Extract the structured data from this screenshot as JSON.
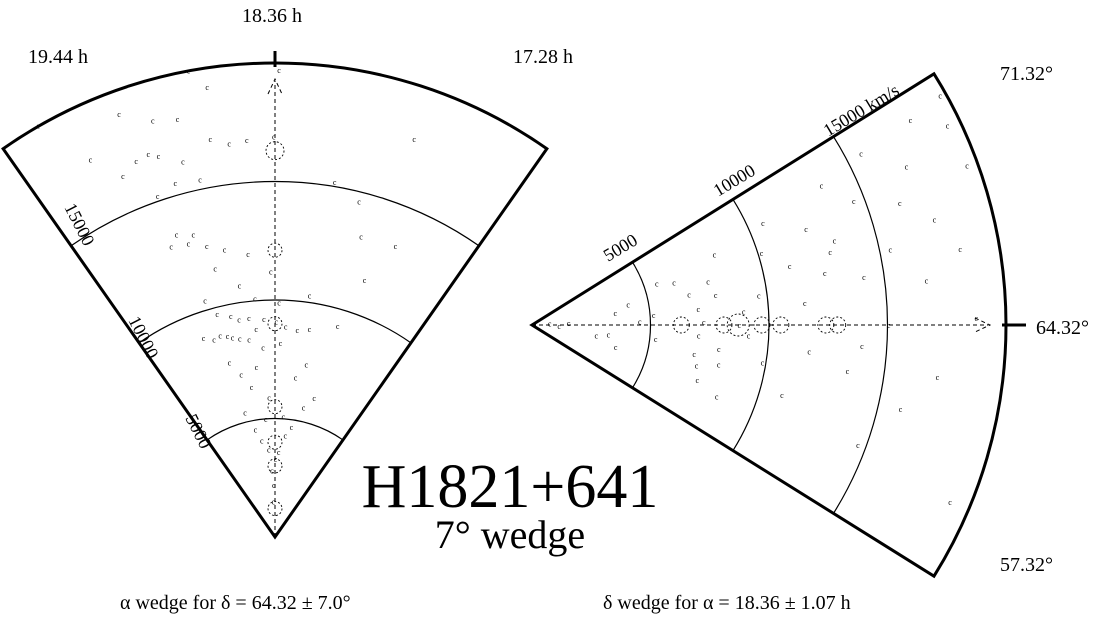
{
  "title": {
    "main": "H1821+641",
    "sub": "7° wedge"
  },
  "chart_data": [
    {
      "type": "scatter",
      "name": "alpha-wedge",
      "caption": "α wedge for δ =  64.32 ± 7.0°",
      "angle_labels": [
        "19.44 h",
        "18.36 h",
        "17.28 h"
      ],
      "angle_range_h": [
        17.28,
        19.44
      ],
      "radial_tick_labels": [
        "5000",
        "10000",
        "15000"
      ],
      "radial_range_kms": [
        0,
        20000
      ],
      "grid": true,
      "points": [
        {
          "a": 0.02,
          "v": 1500
        },
        {
          "a": 0.0,
          "v": 2200
        },
        {
          "a": 0.05,
          "v": 2800
        },
        {
          "a": -0.04,
          "v": 3300
        },
        {
          "a": 0.1,
          "v": 3700
        },
        {
          "a": -0.1,
          "v": 3600
        },
        {
          "a": 0.22,
          "v": 4100
        },
        {
          "a": -0.2,
          "v": 4300
        },
        {
          "a": 0.3,
          "v": 4600
        },
        {
          "a": -0.28,
          "v": 4700
        },
        {
          "a": 0.12,
          "v": 5000
        },
        {
          "a": -0.14,
          "v": 5100
        },
        {
          "a": 0.4,
          "v": 5400
        },
        {
          "a": -0.4,
          "v": 5600
        },
        {
          "a": 0.06,
          "v": 5900
        },
        {
          "a": -0.5,
          "v": 6100
        },
        {
          "a": 0.26,
          "v": 6400
        },
        {
          "a": -0.24,
          "v": 6800
        },
        {
          "a": 0.35,
          "v": 7000
        },
        {
          "a": 0.18,
          "v": 7200
        },
        {
          "a": -0.33,
          "v": 7400
        },
        {
          "a": 0.44,
          "v": 7600
        },
        {
          "a": 0.1,
          "v": 8000
        },
        {
          "a": -0.06,
          "v": 8200
        },
        {
          "a": 0.22,
          "v": 8400
        },
        {
          "a": 0.3,
          "v": 8500
        },
        {
          "a": 0.36,
          "v": 8600
        },
        {
          "a": 0.4,
          "v": 8700
        },
        {
          "a": 0.46,
          "v": 8800
        },
        {
          "a": 0.52,
          "v": 8700
        },
        {
          "a": 0.15,
          "v": 8800
        },
        {
          "a": -0.1,
          "v": 8900
        },
        {
          "a": -0.2,
          "v": 8800
        },
        {
          "a": -0.3,
          "v": 8900
        },
        {
          "a": 0.6,
          "v": 8900
        },
        {
          "a": -0.02,
          "v": 9100
        },
        {
          "a": 0.08,
          "v": 9200
        },
        {
          "a": 0.2,
          "v": 9300
        },
        {
          "a": 0.28,
          "v": 9300
        },
        {
          "a": -0.52,
          "v": 9300
        },
        {
          "a": 0.34,
          "v": 9500
        },
        {
          "a": 0.44,
          "v": 9700
        },
        {
          "a": -0.04,
          "v": 9900
        },
        {
          "a": 0.14,
          "v": 10100
        },
        {
          "a": -0.26,
          "v": 10300
        },
        {
          "a": 0.5,
          "v": 10400
        },
        {
          "a": 0.24,
          "v": 10700
        },
        {
          "a": 0.02,
          "v": 11200
        },
        {
          "a": -0.6,
          "v": 11500
        },
        {
          "a": 0.38,
          "v": 11600
        },
        {
          "a": 0.16,
          "v": 12000
        },
        {
          "a": 0.3,
          "v": 12300
        },
        {
          "a": 0.4,
          "v": 12600
        },
        {
          "a": 0.5,
          "v": 12900
        },
        {
          "a": 0.46,
          "v": 13200
        },
        {
          "a": 0.55,
          "v": 13400
        },
        {
          "a": 0.6,
          "v": 13000
        },
        {
          "a": -0.7,
          "v": 13300
        },
        {
          "a": -0.5,
          "v": 13200
        },
        {
          "a": -0.44,
          "v": 14600
        },
        {
          "a": -0.3,
          "v": 15200
        },
        {
          "a": 0.36,
          "v": 15400
        },
        {
          "a": 0.48,
          "v": 15500
        },
        {
          "a": 0.58,
          "v": 15200
        },
        {
          "a": 0.42,
          "v": 16300
        },
        {
          "a": 0.52,
          "v": 16800
        },
        {
          "a": 0.62,
          "v": 16900
        },
        {
          "a": 0.56,
          "v": 17000
        },
        {
          "a": 0.7,
          "v": 16500
        },
        {
          "a": 0.0,
          "v": 16900
        },
        {
          "a": 0.12,
          "v": 16800
        },
        {
          "a": 0.2,
          "v": 16700
        },
        {
          "a": 0.28,
          "v": 17000
        },
        {
          "a": 0.4,
          "v": 18100
        },
        {
          "a": 0.5,
          "v": 18300
        },
        {
          "a": -0.6,
          "v": 17800
        },
        {
          "a": -0.02,
          "v": 19700
        },
        {
          "a": 0.32,
          "v": 20000
        },
        {
          "a": 0.62,
          "v": 19000
        },
        {
          "a": 0.8,
          "v": 17700
        },
        {
          "a": 0.92,
          "v": 20000
        },
        {
          "a": 0.26,
          "v": 19200
        }
      ]
    },
    {
      "type": "scatter",
      "name": "delta-wedge",
      "caption": "δ wedge for α =  18.36 ± 1.07 h",
      "angle_labels": [
        "71.32°",
        "64.32°",
        "57.32°"
      ],
      "angle_range_deg": [
        57.32,
        71.32
      ],
      "radial_tick_labels": [
        "5000",
        "10000",
        "15000 km/s"
      ],
      "radial_range_kms": [
        0,
        20000
      ],
      "grid": true,
      "points": [
        {
          "d": 1.0,
          "v": 800
        },
        {
          "d": -0.5,
          "v": 1200
        },
        {
          "d": 0.6,
          "v": 1600
        },
        {
          "d": -2.0,
          "v": 2800
        },
        {
          "d": -1.5,
          "v": 3300
        },
        {
          "d": 1.8,
          "v": 3600
        },
        {
          "d": 2.6,
          "v": 4200
        },
        {
          "d": -3.2,
          "v": 3700
        },
        {
          "d": 0.4,
          "v": 4600
        },
        {
          "d": 1.0,
          "v": 5200
        },
        {
          "d": -1.4,
          "v": 5300
        },
        {
          "d": 4.0,
          "v": 5600
        },
        {
          "d": 3.6,
          "v": 6300
        },
        {
          "d": 2.4,
          "v": 6800
        },
        {
          "d": 1.2,
          "v": 7100
        },
        {
          "d": 0.2,
          "v": 7300
        },
        {
          "d": -0.8,
          "v": 7100
        },
        {
          "d": -2.2,
          "v": 7000
        },
        {
          "d": -3.0,
          "v": 7200
        },
        {
          "d": -4.0,
          "v": 7400
        },
        {
          "d": 3.0,
          "v": 7700
        },
        {
          "d": 2.0,
          "v": 7900
        },
        {
          "d": -1.6,
          "v": 8000
        },
        {
          "d": -2.6,
          "v": 8100
        },
        {
          "d": 4.6,
          "v": 8300
        },
        {
          "d": -4.6,
          "v": 8400
        },
        {
          "d": 0.0,
          "v": 8800
        },
        {
          "d": 0.8,
          "v": 9000
        },
        {
          "d": -0.6,
          "v": 9200
        },
        {
          "d": 1.6,
          "v": 9700
        },
        {
          "d": -2.0,
          "v": 9900
        },
        {
          "d": 3.8,
          "v": 10200
        },
        {
          "d": 5.2,
          "v": 10700
        },
        {
          "d": 2.8,
          "v": 11200
        },
        {
          "d": -3.4,
          "v": 11000
        },
        {
          "d": 1.0,
          "v": 11600
        },
        {
          "d": -1.2,
          "v": 11800
        },
        {
          "d": 4.2,
          "v": 12300
        },
        {
          "d": 2.2,
          "v": 12600
        },
        {
          "d": 3.0,
          "v": 13000
        },
        {
          "d": 3.4,
          "v": 13300
        },
        {
          "d": -1.8,
          "v": 13500
        },
        {
          "d": 5.6,
          "v": 13600
        },
        {
          "d": -0.8,
          "v": 14000
        },
        {
          "d": 1.8,
          "v": 14200
        },
        {
          "d": 4.6,
          "v": 14600
        },
        {
          "d": -4.4,
          "v": 14700
        },
        {
          "d": 0.0,
          "v": 15100
        },
        {
          "d": 2.6,
          "v": 15500
        },
        {
          "d": 6.0,
          "v": 15700
        },
        {
          "d": -2.8,
          "v": 16000
        },
        {
          "d": 4.0,
          "v": 16400
        },
        {
          "d": 1.4,
          "v": 16800
        },
        {
          "d": 5.0,
          "v": 17200
        },
        {
          "d": 3.2,
          "v": 17600
        },
        {
          "d": -1.6,
          "v": 17300
        },
        {
          "d": 6.2,
          "v": 18200
        },
        {
          "d": 2.2,
          "v": 18400
        },
        {
          "d": 0.2,
          "v": 18800
        },
        {
          "d": -5.0,
          "v": 19200
        },
        {
          "d": 5.6,
          "v": 19500
        },
        {
          "d": 6.4,
          "v": 19800
        },
        {
          "d": 4.4,
          "v": 19600
        }
      ]
    }
  ]
}
